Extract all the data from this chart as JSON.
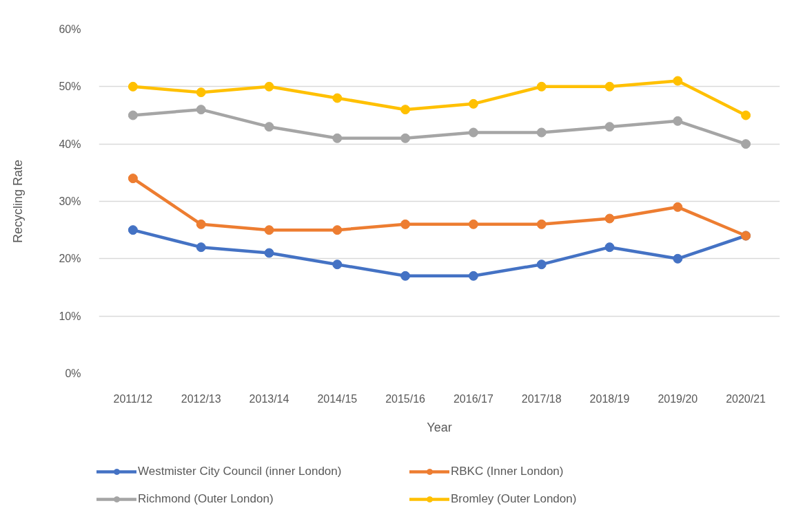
{
  "chart_data": {
    "type": "line",
    "categories": [
      "2011/12",
      "2012/13",
      "2013/14",
      "2014/15",
      "2015/16",
      "2016/17",
      "2017/18",
      "2018/19",
      "2019/20",
      "2020/21"
    ],
    "series": [
      {
        "name": "Westmister City Council (inner London)",
        "color": "#4472c4",
        "values": [
          25,
          22,
          21,
          19,
          17,
          17,
          19,
          22,
          20,
          24
        ]
      },
      {
        "name": "RBKC (Inner London)",
        "color": "#ed7d31",
        "values": [
          34,
          26,
          25,
          25,
          26,
          26,
          26,
          27,
          29,
          24
        ]
      },
      {
        "name": "Richmond (Outer London)",
        "color": "#a5a5a5",
        "values": [
          45,
          46,
          43,
          41,
          41,
          42,
          42,
          43,
          44,
          40
        ]
      },
      {
        "name": "Bromley (Outer London)",
        "color": "#ffc000",
        "values": [
          50,
          49,
          50,
          48,
          46,
          47,
          50,
          50,
          51,
          45
        ]
      }
    ],
    "xlabel": "Year",
    "ylabel": "Recycling Rate",
    "ylim": [
      0,
      60
    ],
    "yticks": [
      {
        "value": 0,
        "label": "0%"
      },
      {
        "value": 10,
        "label": "10%"
      },
      {
        "value": 20,
        "label": "20%"
      },
      {
        "value": 30,
        "label": "30%"
      },
      {
        "value": 40,
        "label": "40%"
      },
      {
        "value": 50,
        "label": "50%"
      },
      {
        "value": 60,
        "label": "60%"
      }
    ],
    "grid": "y",
    "legend": "bottom",
    "marker": "circle",
    "line_style": "solid"
  }
}
